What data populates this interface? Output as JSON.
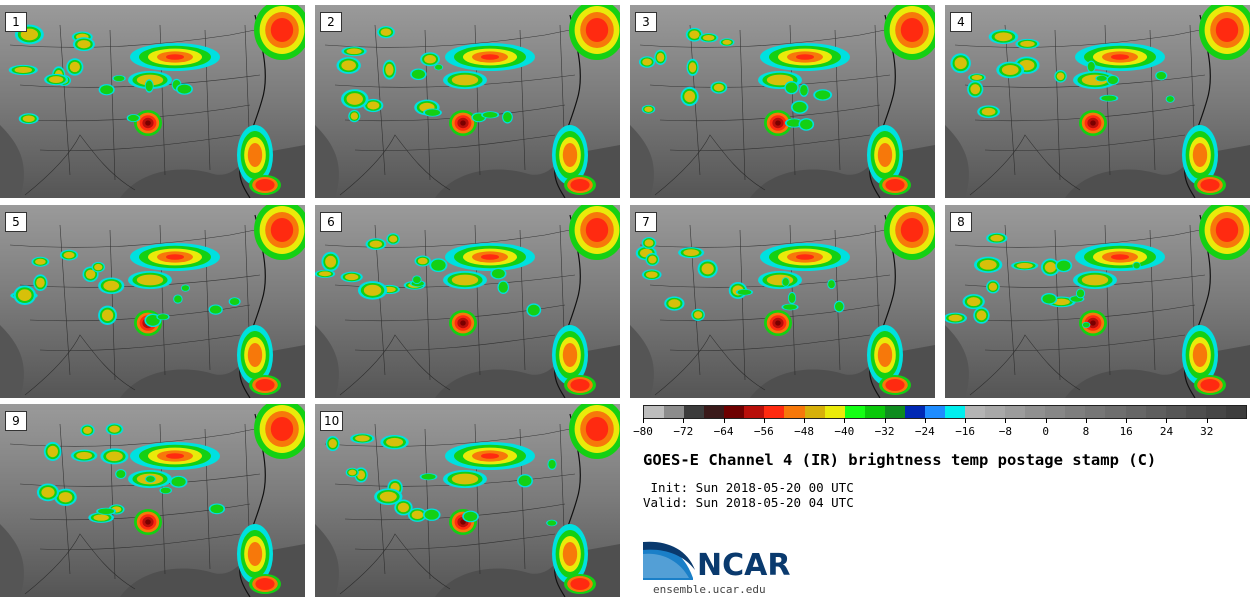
{
  "panels": [
    {
      "label": "1"
    },
    {
      "label": "2"
    },
    {
      "label": "3"
    },
    {
      "label": "4"
    },
    {
      "label": "5"
    },
    {
      "label": "6"
    },
    {
      "label": "7"
    },
    {
      "label": "8"
    },
    {
      "label": "9"
    },
    {
      "label": "10"
    }
  ],
  "colorbar": {
    "colors": [
      "#bdbdbd",
      "#8c8c8c",
      "#3c3c3c",
      "#3a1a1a",
      "#6e0000",
      "#b80f0a",
      "#ff2a10",
      "#f7780a",
      "#d7b00a",
      "#eaea0a",
      "#14ff14",
      "#0ac80a",
      "#0e8c1e",
      "#0028b4",
      "#1e8cff",
      "#00eeee",
      "#b4b4b4",
      "#a8a8a8",
      "#9c9c9c",
      "#909090",
      "#878787",
      "#7e7e7e",
      "#767676",
      "#6e6e6e",
      "#666666",
      "#5e5e5e",
      "#565656",
      "#4e4e4e",
      "#464646",
      "#3e3e3e"
    ],
    "tick_labels": [
      "−80",
      "−72",
      "−64",
      "−56",
      "−48",
      "−40",
      "−32",
      "−24",
      "−16",
      "−8",
      "0",
      "8",
      "16",
      "24",
      "32"
    ]
  },
  "title": "GOES-E Channel 4 (IR) brightness temp postage stamp (C)",
  "init_line": " Init: Sun 2018-05-20 00 UTC",
  "valid_line": "Valid: Sun 2018-05-20 04 UTC",
  "logo": {
    "text": "NCAR",
    "icon": "ncar-logo-icon",
    "brand_color": "#0a3a6e",
    "accent_color": "#1a7fc8"
  },
  "site": "ensemble.ucar.edu"
}
